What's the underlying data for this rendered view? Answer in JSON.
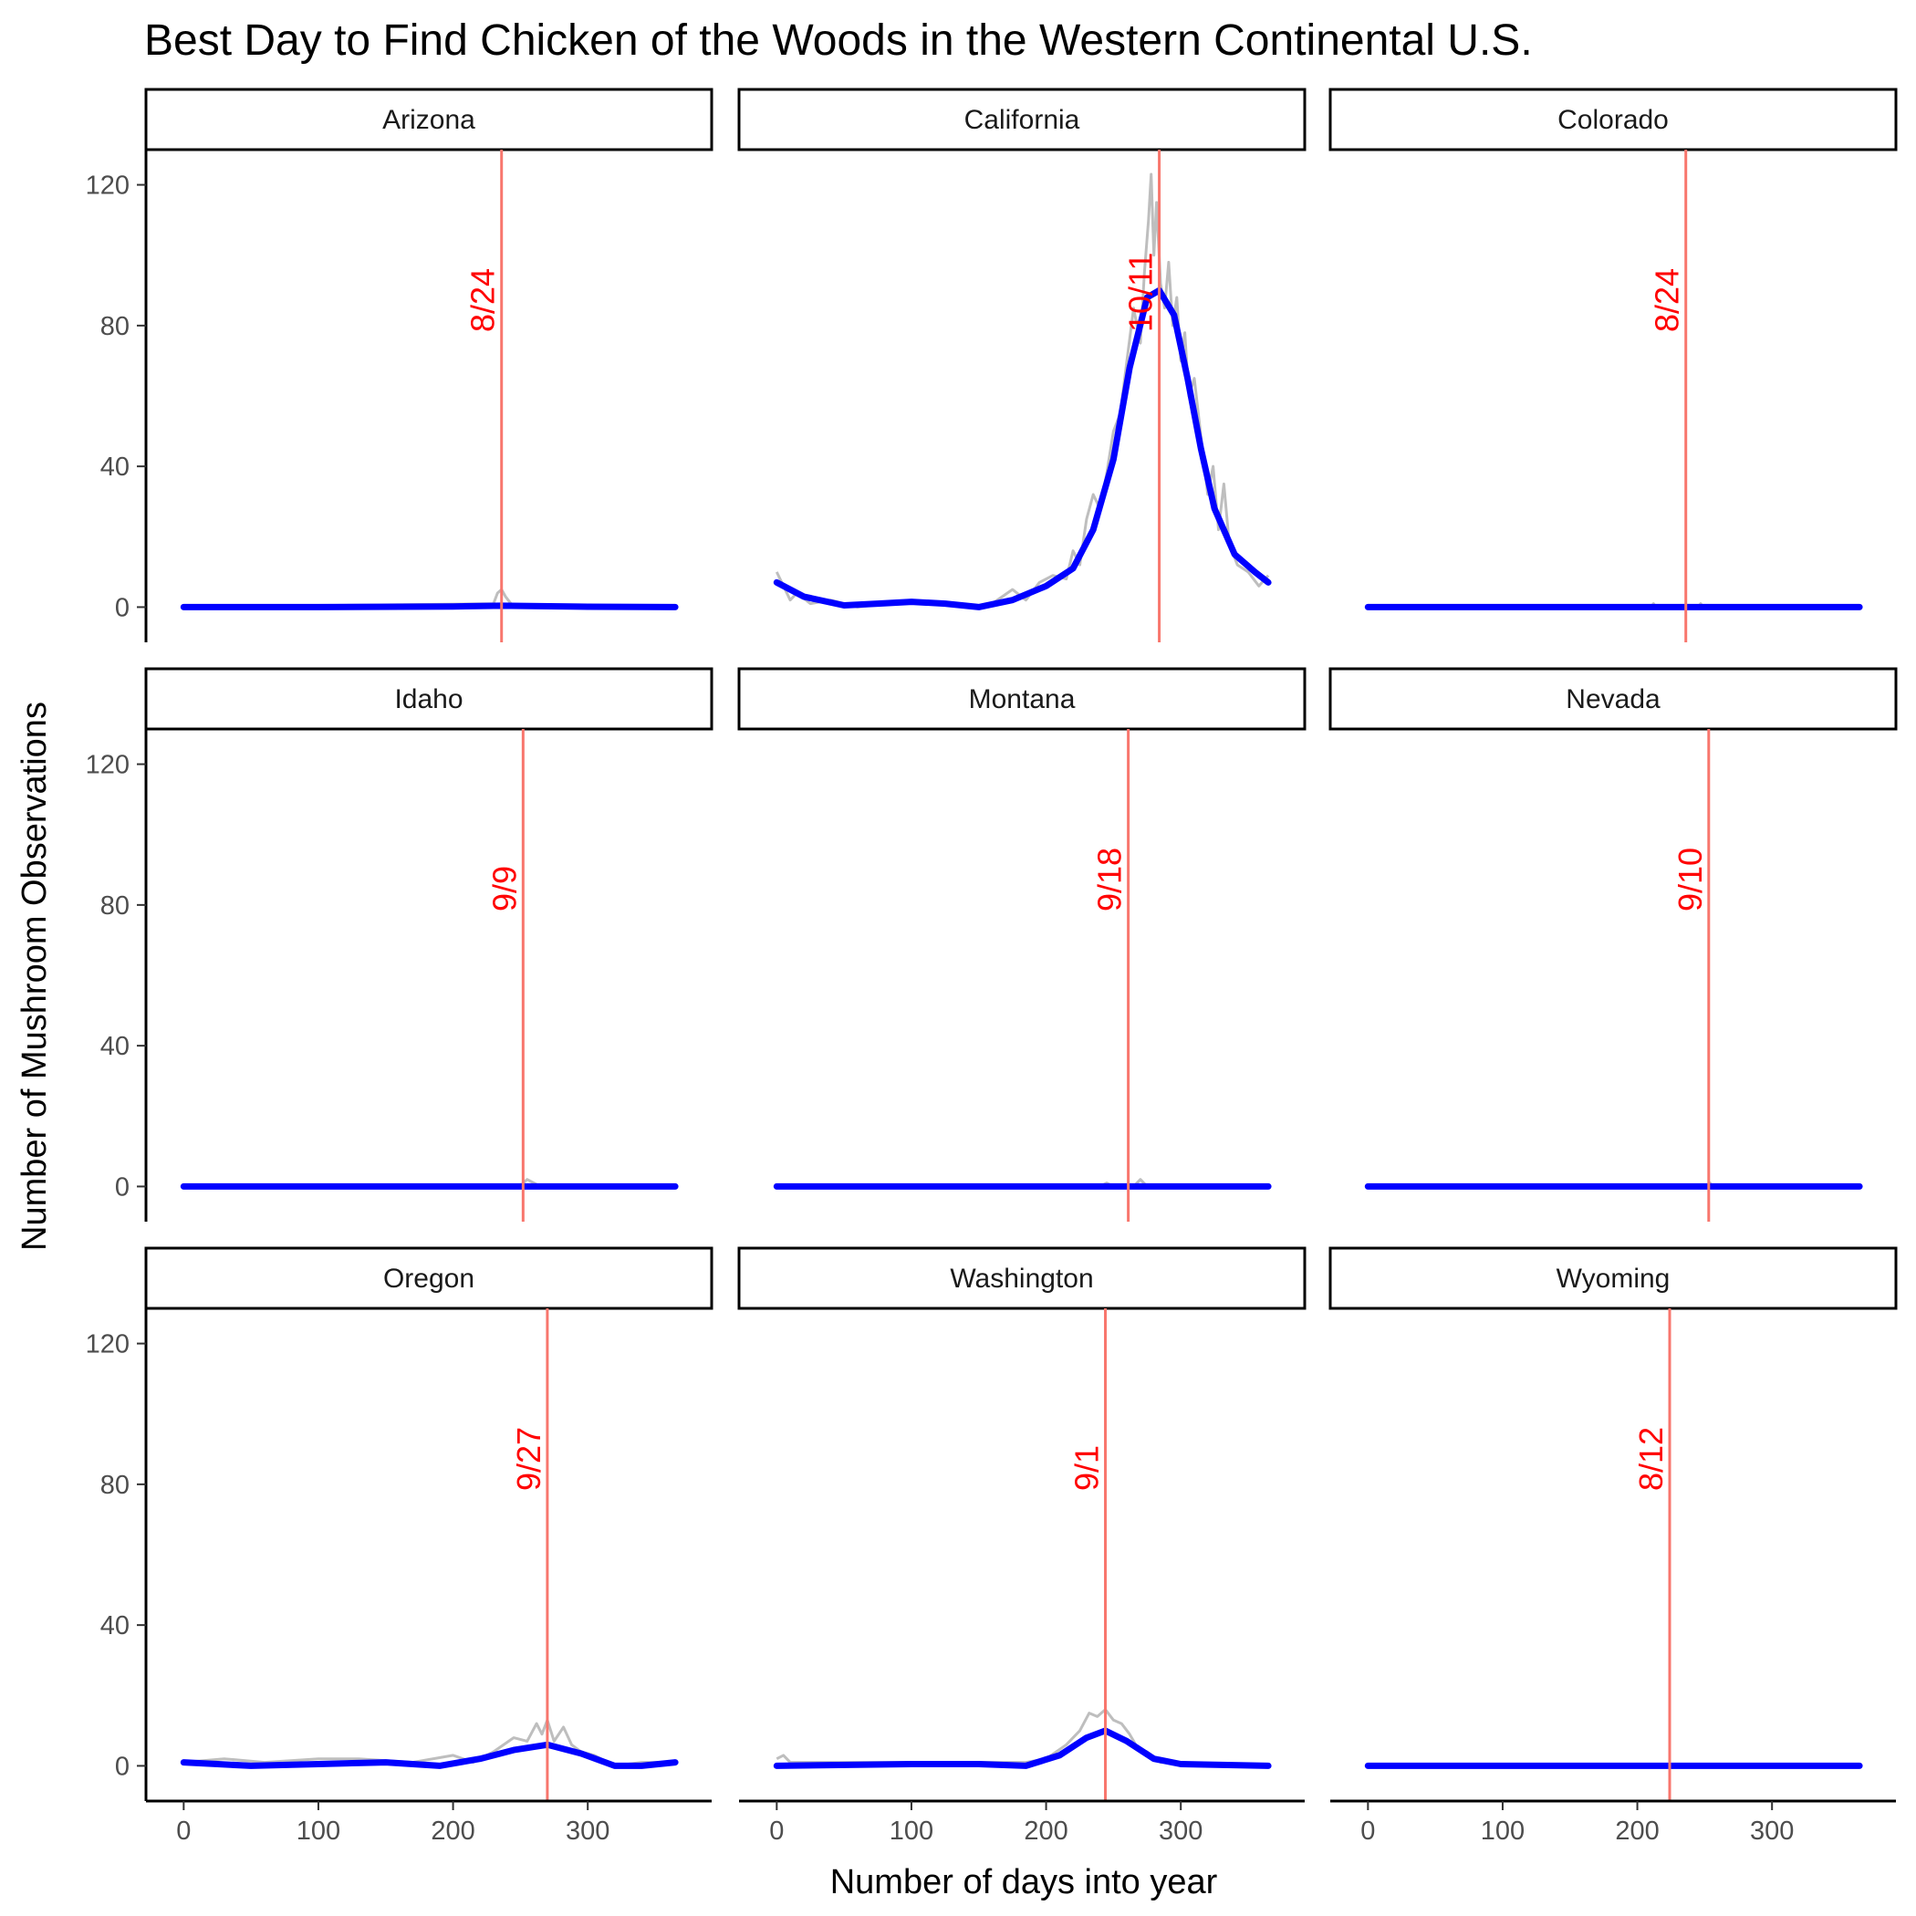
{
  "chart_data": {
    "type": "line",
    "title": "Best Day to Find Chicken of the Woods in the Western Continental U.S.",
    "xlabel": "Number of days into year",
    "ylabel": "Number of Mushroom Observations",
    "xlim": [
      0,
      365
    ],
    "ylim": [
      0,
      120
    ],
    "x_ticks": [
      0,
      100,
      200,
      300
    ],
    "y_ticks": [
      0,
      40,
      80,
      120
    ],
    "grid": false,
    "layout": "facet_wrap 3x3",
    "series_styles": {
      "raw_observations": {
        "color": "#bebebe"
      },
      "smoothed": {
        "color": "#0000ff"
      },
      "peak_line": {
        "color": "#f8766d"
      },
      "peak_label": {
        "color": "#ff0000"
      }
    },
    "panels": [
      {
        "name": "Arizona",
        "peak_day": 236,
        "peak_label": "8/24",
        "smooth": [
          [
            0,
            0
          ],
          [
            100,
            0
          ],
          [
            200,
            0.2
          ],
          [
            236,
            0.4
          ],
          [
            300,
            0.1
          ],
          [
            365,
            0
          ]
        ],
        "raw": [
          [
            0,
            0
          ],
          [
            230,
            1
          ],
          [
            233,
            4
          ],
          [
            236,
            5
          ],
          [
            239,
            3
          ],
          [
            245,
            0
          ],
          [
            365,
            0
          ]
        ]
      },
      {
        "name": "California",
        "peak_day": 284,
        "peak_label": "10/11",
        "smooth": [
          [
            0,
            7
          ],
          [
            20,
            3
          ],
          [
            50,
            0.5
          ],
          [
            75,
            1
          ],
          [
            100,
            1.5
          ],
          [
            125,
            1
          ],
          [
            150,
            0
          ],
          [
            175,
            2
          ],
          [
            200,
            6
          ],
          [
            220,
            11
          ],
          [
            235,
            22
          ],
          [
            250,
            42
          ],
          [
            262,
            68
          ],
          [
            275,
            88
          ],
          [
            284,
            90
          ],
          [
            295,
            83
          ],
          [
            305,
            65
          ],
          [
            315,
            45
          ],
          [
            325,
            28
          ],
          [
            340,
            15
          ],
          [
            355,
            10
          ],
          [
            365,
            7
          ]
        ],
        "raw": [
          [
            0,
            10
          ],
          [
            5,
            6
          ],
          [
            10,
            2
          ],
          [
            15,
            4
          ],
          [
            25,
            1
          ],
          [
            40,
            2
          ],
          [
            60,
            0
          ],
          [
            80,
            1
          ],
          [
            100,
            2
          ],
          [
            120,
            1
          ],
          [
            140,
            0
          ],
          [
            160,
            1
          ],
          [
            175,
            5
          ],
          [
            185,
            2
          ],
          [
            195,
            7
          ],
          [
            205,
            9
          ],
          [
            215,
            8
          ],
          [
            220,
            16
          ],
          [
            225,
            12
          ],
          [
            230,
            25
          ],
          [
            235,
            32
          ],
          [
            240,
            28
          ],
          [
            245,
            38
          ],
          [
            250,
            50
          ],
          [
            255,
            55
          ],
          [
            260,
            70
          ],
          [
            265,
            85
          ],
          [
            270,
            75
          ],
          [
            273,
            95
          ],
          [
            276,
            110
          ],
          [
            278,
            123
          ],
          [
            280,
            100
          ],
          [
            282,
            115
          ],
          [
            285,
            92
          ],
          [
            288,
            85
          ],
          [
            291,
            98
          ],
          [
            294,
            80
          ],
          [
            297,
            88
          ],
          [
            300,
            70
          ],
          [
            303,
            78
          ],
          [
            306,
            60
          ],
          [
            310,
            65
          ],
          [
            313,
            55
          ],
          [
            316,
            45
          ],
          [
            320,
            32
          ],
          [
            324,
            40
          ],
          [
            328,
            22
          ],
          [
            332,
            35
          ],
          [
            336,
            18
          ],
          [
            342,
            12
          ],
          [
            350,
            10
          ],
          [
            358,
            6
          ],
          [
            365,
            9
          ]
        ]
      },
      {
        "name": "Colorado",
        "peak_day": 236,
        "peak_label": "8/24",
        "smooth": [
          [
            0,
            0
          ],
          [
            365,
            0
          ]
        ],
        "raw": [
          [
            0,
            0
          ],
          [
            210,
            0
          ],
          [
            212,
            1
          ],
          [
            214,
            0
          ],
          [
            245,
            0
          ],
          [
            247,
            1
          ],
          [
            249,
            0
          ],
          [
            365,
            0
          ]
        ]
      },
      {
        "name": "Idaho",
        "peak_day": 252,
        "peak_label": "9/9",
        "smooth": [
          [
            0,
            0
          ],
          [
            365,
            0
          ]
        ],
        "raw": [
          [
            0,
            0
          ],
          [
            250,
            0
          ],
          [
            252,
            1
          ],
          [
            255,
            2
          ],
          [
            260,
            1
          ],
          [
            265,
            0
          ],
          [
            365,
            0
          ]
        ]
      },
      {
        "name": "Montana",
        "peak_day": 261,
        "peak_label": "9/18",
        "smooth": [
          [
            0,
            0
          ],
          [
            365,
            0
          ]
        ],
        "raw": [
          [
            0,
            0
          ],
          [
            240,
            0
          ],
          [
            245,
            1
          ],
          [
            250,
            0
          ],
          [
            265,
            0
          ],
          [
            270,
            2
          ],
          [
            275,
            0
          ],
          [
            365,
            0
          ]
        ]
      },
      {
        "name": "Nevada",
        "peak_day": 253,
        "peak_label": "9/10",
        "smooth": [
          [
            0,
            0
          ],
          [
            365,
            0
          ]
        ],
        "raw": [
          [
            0,
            0
          ],
          [
            252,
            0
          ],
          [
            254,
            1
          ],
          [
            256,
            0
          ],
          [
            365,
            0
          ]
        ]
      },
      {
        "name": "Oregon",
        "peak_day": 270,
        "peak_label": "9/27",
        "smooth": [
          [
            0,
            1
          ],
          [
            25,
            0.5
          ],
          [
            50,
            0
          ],
          [
            100,
            0.5
          ],
          [
            150,
            1
          ],
          [
            190,
            0
          ],
          [
            220,
            2
          ],
          [
            245,
            4.5
          ],
          [
            270,
            6
          ],
          [
            295,
            3.5
          ],
          [
            320,
            0
          ],
          [
            340,
            0
          ],
          [
            365,
            1
          ]
        ],
        "raw": [
          [
            0,
            1
          ],
          [
            30,
            2
          ],
          [
            60,
            1
          ],
          [
            100,
            2
          ],
          [
            130,
            2
          ],
          [
            170,
            1
          ],
          [
            200,
            3
          ],
          [
            215,
            1
          ],
          [
            230,
            4
          ],
          [
            245,
            8
          ],
          [
            255,
            7
          ],
          [
            262,
            12
          ],
          [
            266,
            9
          ],
          [
            270,
            13
          ],
          [
            275,
            7
          ],
          [
            282,
            11
          ],
          [
            288,
            6
          ],
          [
            295,
            4
          ],
          [
            305,
            3
          ],
          [
            320,
            0
          ],
          [
            340,
            1
          ],
          [
            365,
            1
          ]
        ]
      },
      {
        "name": "Washington",
        "peak_day": 244,
        "peak_label": "9/1",
        "smooth": [
          [
            0,
            0
          ],
          [
            100,
            0.5
          ],
          [
            150,
            0.5
          ],
          [
            185,
            0
          ],
          [
            210,
            3
          ],
          [
            230,
            8
          ],
          [
            244,
            10
          ],
          [
            260,
            7
          ],
          [
            280,
            2
          ],
          [
            300,
            0.5
          ],
          [
            365,
            0
          ]
        ],
        "raw": [
          [
            0,
            2
          ],
          [
            5,
            3
          ],
          [
            10,
            1
          ],
          [
            50,
            1
          ],
          [
            100,
            1
          ],
          [
            150,
            1
          ],
          [
            185,
            1
          ],
          [
            200,
            2
          ],
          [
            215,
            6
          ],
          [
            225,
            10
          ],
          [
            232,
            15
          ],
          [
            238,
            14
          ],
          [
            244,
            16
          ],
          [
            250,
            13
          ],
          [
            256,
            12
          ],
          [
            262,
            9
          ],
          [
            268,
            5
          ],
          [
            275,
            4
          ],
          [
            285,
            1
          ],
          [
            300,
            1
          ],
          [
            365,
            0
          ]
        ]
      },
      {
        "name": "Wyoming",
        "peak_day": 224,
        "peak_label": "8/12",
        "smooth": [
          [
            0,
            0
          ],
          [
            365,
            0
          ]
        ],
        "raw": [
          [
            0,
            0
          ],
          [
            365,
            0
          ]
        ]
      }
    ]
  }
}
